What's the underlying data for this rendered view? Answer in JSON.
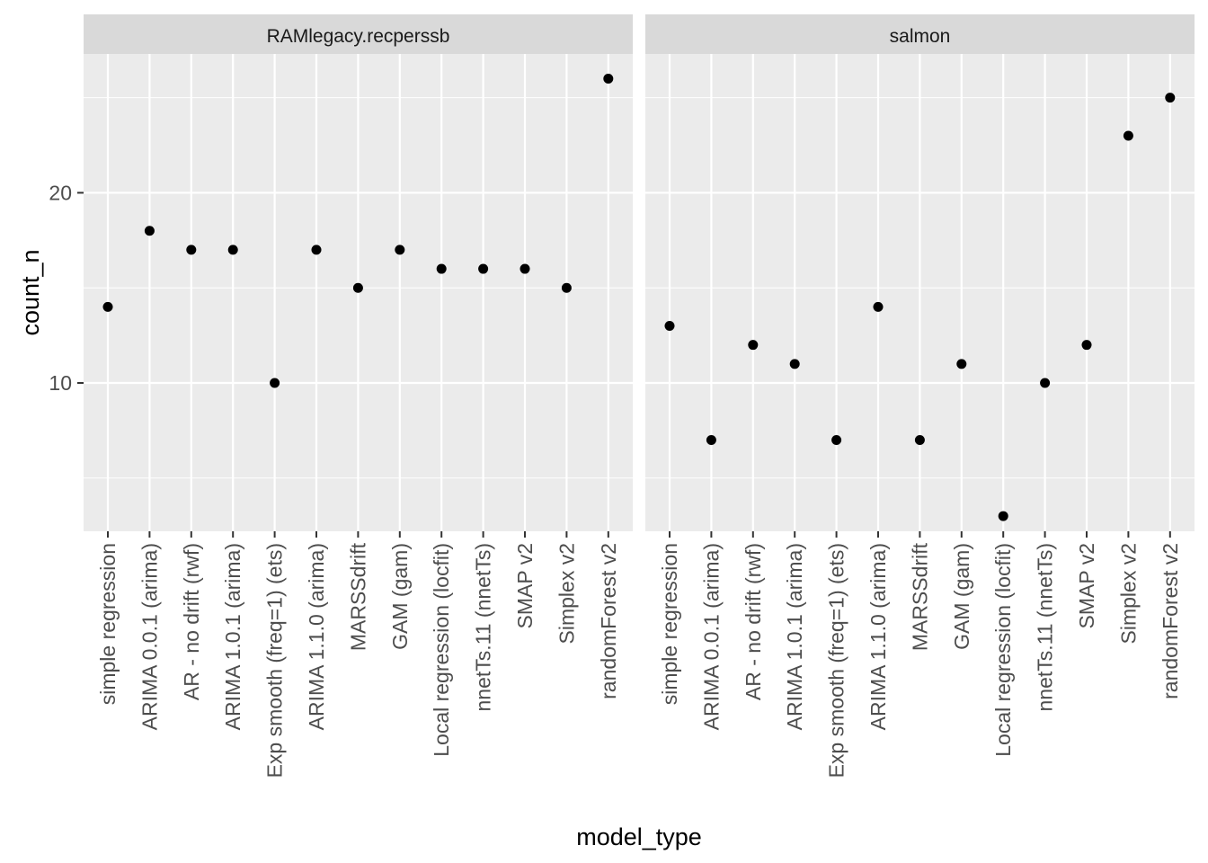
{
  "chart_data": {
    "type": "scatter",
    "xlabel": "model_type",
    "ylabel": "count_n",
    "ylim": [
      2.2,
      27.3
    ],
    "yticks": [
      10,
      20
    ],
    "grid": true,
    "categories": [
      "simple regression",
      "ARIMA 0.0.1 (arima)",
      "AR - no drift (rwf)",
      "ARIMA 1.0.1 (arima)",
      "Exp smooth (freq=1) (ets)",
      "ARIMA 1.1.0 (arima)",
      "MARSSdrift",
      "GAM (gam)",
      "Local regression (locfit)",
      "nnetTs.11 (nnetTs)",
      "SMAP v2",
      "Simplex v2",
      "randomForest v2"
    ],
    "panels": [
      {
        "name": "RAMlegacy.recperssb",
        "values": [
          14,
          18,
          17,
          17,
          10,
          17,
          15,
          17,
          16,
          16,
          16,
          15,
          26
        ]
      },
      {
        "name": "salmon",
        "values": [
          13,
          7,
          12,
          11,
          7,
          14,
          7,
          11,
          3,
          10,
          12,
          23,
          25
        ]
      }
    ],
    "colors": {
      "panel_bg": "#ebebeb",
      "strip_bg": "#d9d9d9",
      "grid": "#ffffff",
      "point": "#000000",
      "tick": "#333333"
    }
  }
}
